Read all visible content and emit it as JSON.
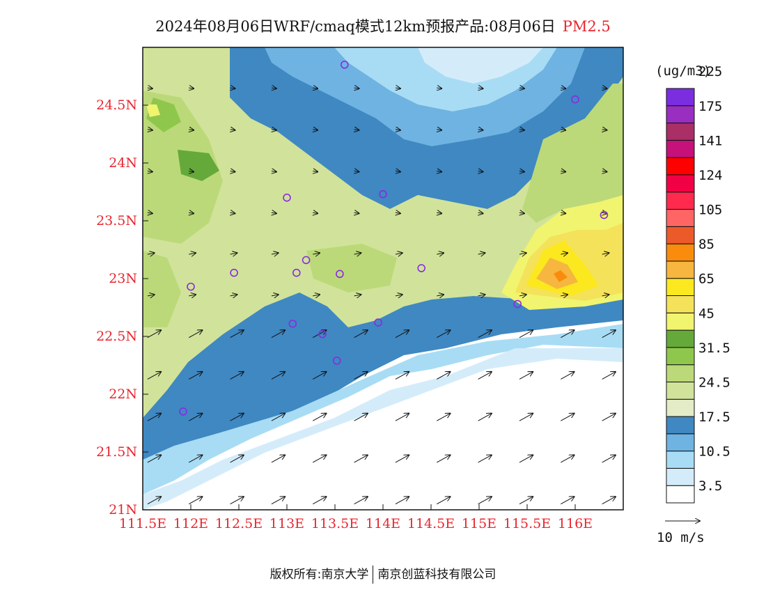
{
  "header": {
    "title": "2024年08月06日WRF/cmaq模式12km预报产品:08月06日",
    "pollutant": "PM2.5"
  },
  "map": {
    "lon_range": [
      111.5,
      116.5
    ],
    "lat_range": [
      21.0,
      25.0
    ],
    "x_ticks": [
      "111.5E",
      "112E",
      "112.5E",
      "113E",
      "113.5E",
      "114E",
      "114.5E",
      "115E",
      "115.5E",
      "116E"
    ],
    "y_ticks": [
      "21N",
      "21.5N",
      "22N",
      "22.5N",
      "23N",
      "23.5N",
      "24N",
      "24.5N"
    ],
    "ocean_color": "#ffffff",
    "station_color": "#8a2be2",
    "stations_icon": "circle-marker-icon",
    "wind_icon": "wind-arrow-icon",
    "stations": [
      {
        "lon": 113.6,
        "lat": 24.85
      },
      {
        "lon": 116.0,
        "lat": 24.55
      },
      {
        "lon": 113.0,
        "lat": 23.7
      },
      {
        "lon": 114.0,
        "lat": 23.73
      },
      {
        "lon": 116.3,
        "lat": 23.55
      },
      {
        "lon": 112.0,
        "lat": 22.93
      },
      {
        "lon": 112.45,
        "lat": 23.05
      },
      {
        "lon": 113.1,
        "lat": 23.05
      },
      {
        "lon": 113.2,
        "lat": 23.16
      },
      {
        "lon": 113.55,
        "lat": 23.04
      },
      {
        "lon": 114.4,
        "lat": 23.09
      },
      {
        "lon": 115.4,
        "lat": 22.78
      },
      {
        "lon": 113.06,
        "lat": 22.61
      },
      {
        "lon": 113.37,
        "lat": 22.52
      },
      {
        "lon": 113.95,
        "lat": 22.62
      },
      {
        "lon": 113.52,
        "lat": 22.29
      },
      {
        "lon": 111.92,
        "lat": 21.85
      }
    ]
  },
  "colorbar": {
    "unit": "(ug/m3)",
    "colors": [
      "#ffffff",
      "#d4ecfa",
      "#a8dcf4",
      "#6fb3e2",
      "#3f88c2",
      "#e3ecc7",
      "#d1e39a",
      "#bcd979",
      "#8fc74d",
      "#65a93b",
      "#f1f46e",
      "#f4e25a",
      "#fbe81f",
      "#f6b640",
      "#f98c0d",
      "#ec5a2a",
      "#ff6565",
      "#ff2a4e",
      "#f20046",
      "#ff0000",
      "#c6107a",
      "#a92f66",
      "#9a2ec0",
      "#7b2ee0"
    ],
    "labels": [
      "3.5",
      "10.5",
      "17.5",
      "24.5",
      "31.5",
      "45",
      "65",
      "85",
      "105",
      "124",
      "141",
      "175",
      "225"
    ],
    "wind_ref_label": "10 m/s"
  },
  "footer": {
    "left": "版权所有:南京大学",
    "right": "南京创蓝科技有限公司"
  }
}
